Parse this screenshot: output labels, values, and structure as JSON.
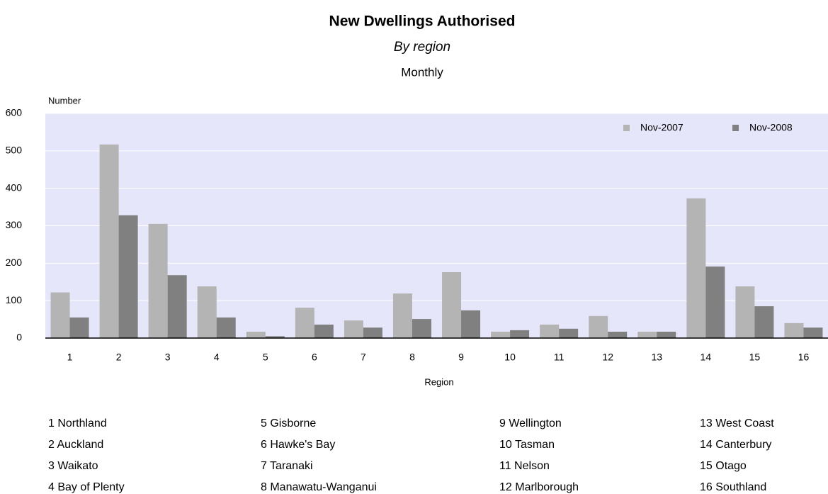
{
  "chart_data": {
    "type": "bar",
    "title": "New Dwellings Authorised",
    "subtitle": "By region",
    "frequency": "Monthly",
    "y_label": "Number",
    "x_label": "Region",
    "categories": [
      "1",
      "2",
      "3",
      "4",
      "5",
      "6",
      "7",
      "8",
      "9",
      "10",
      "11",
      "12",
      "13",
      "14",
      "15",
      "16"
    ],
    "series": [
      {
        "name": "Nov-2007",
        "color": "#b4b4b4",
        "values": [
          122,
          517,
          305,
          138,
          17,
          81,
          47,
          119,
          176,
          17,
          36,
          59,
          17,
          373,
          138,
          40
        ]
      },
      {
        "name": "Nov-2008",
        "color": "#808080",
        "values": [
          55,
          328,
          168,
          55,
          5,
          36,
          28,
          51,
          74,
          21,
          25,
          17,
          17,
          191,
          85,
          28
        ]
      }
    ],
    "ylim": [
      0,
      600
    ],
    "yticks": [
      0,
      100,
      200,
      300,
      400,
      500,
      600
    ],
    "grid": true,
    "legend": "upper right",
    "plot_background": "#e6e6fa"
  },
  "region_key": [
    "1 Northland",
    "2 Auckland",
    "3 Waikato",
    "4 Bay of Plenty",
    "5 Gisborne",
    "6 Hawke's Bay",
    "7 Taranaki",
    "8 Manawatu-Wanganui",
    "9 Wellington",
    "10 Tasman",
    "11 Nelson",
    "12 Marlborough",
    "13 West Coast",
    "14 Canterbury",
    "15 Otago",
    "16 Southland"
  ]
}
